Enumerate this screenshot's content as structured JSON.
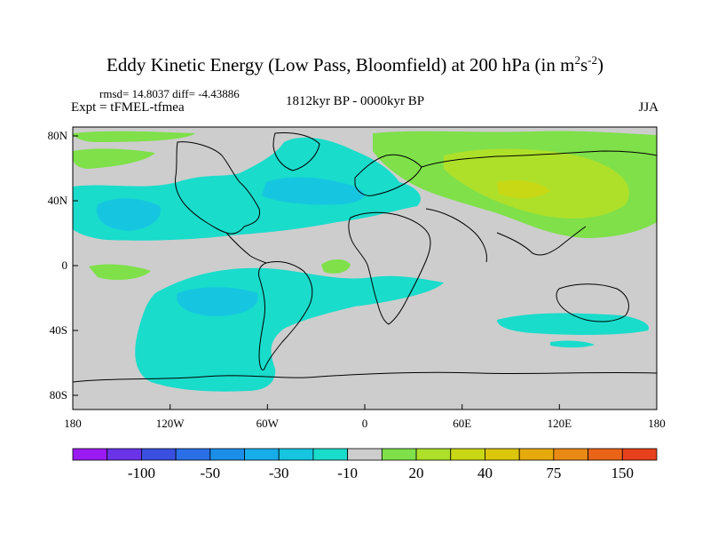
{
  "title": {
    "main": "Eddy Kinetic Energy (Low Pass, Bloomfield) at 200 hPa (in m",
    "sup1": "2",
    "mid": "s",
    "sup2": "-2",
    "end": ")"
  },
  "stats": "rmsd= 14.8037 diff= -4.43886",
  "expt": "Expt = tFMEL-tfmea",
  "period": "1812kyr BP - 0000kyr BP",
  "season": "JJA",
  "lat_ticks": [
    "80N",
    "40N",
    "0",
    "40S",
    "80S"
  ],
  "lon_ticks": [
    "180",
    "120W",
    "60W",
    "0",
    "60E",
    "120E",
    "180"
  ],
  "colorbar": {
    "colors": [
      "#9a1bf2",
      "#6a33e8",
      "#3a4fe0",
      "#2a6fe6",
      "#1b8fe8",
      "#17acea",
      "#16c6e0",
      "#19dccb",
      "#cdcdcd",
      "#7fe04a",
      "#aee02a",
      "#c9d814",
      "#dcc60c",
      "#e6aa0c",
      "#ea8a14",
      "#ea6418",
      "#e6401c"
    ],
    "labels": [
      "-100",
      "-50",
      "-30",
      "-10",
      "20",
      "40",
      "75",
      "150"
    ]
  },
  "map_colors": {
    "neutral": "#cdcdcd",
    "cyan": "#19dccb",
    "light_cyan": "#16c6e0",
    "blue": "#17acea",
    "green": "#7fe04a",
    "yellow_green": "#aee02a",
    "yellow": "#c9d814"
  }
}
